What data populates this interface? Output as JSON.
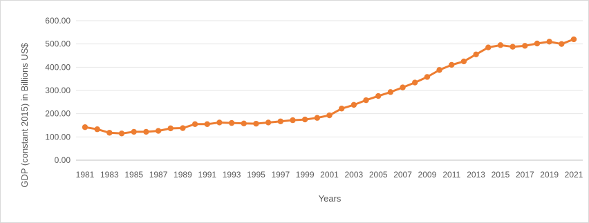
{
  "chart_data": {
    "type": "line",
    "title": "",
    "xlabel": "Years",
    "ylabel": "GDP (constant 2015) in Billions US$",
    "ylim": [
      0,
      600
    ],
    "yticks": [
      "0.00",
      "100.00",
      "200.00",
      "300.00",
      "400.00",
      "500.00",
      "600.00"
    ],
    "xtick_labels": [
      "1981",
      "1983",
      "1985",
      "1987",
      "1989",
      "1991",
      "1993",
      "1995",
      "1997",
      "1999",
      "2001",
      "2003",
      "2005",
      "2007",
      "2009",
      "2011",
      "2013",
      "2015",
      "2017",
      "2019",
      "2021"
    ],
    "grid": true,
    "legend": "none",
    "color": "#ED7D31",
    "x": [
      1981,
      1982,
      1983,
      1984,
      1985,
      1986,
      1987,
      1988,
      1989,
      1990,
      1991,
      1992,
      1993,
      1994,
      1995,
      1996,
      1997,
      1998,
      1999,
      2000,
      2001,
      2002,
      2003,
      2004,
      2005,
      2006,
      2007,
      2008,
      2009,
      2010,
      2011,
      2012,
      2013,
      2014,
      2015,
      2016,
      2017,
      2018,
      2019,
      2020,
      2021
    ],
    "series": [
      {
        "values": [
          142,
          133,
          118,
          115,
          122,
          122,
          126,
          137,
          138,
          155,
          155,
          162,
          160,
          158,
          157,
          162,
          167,
          172,
          175,
          182,
          193,
          222,
          238,
          258,
          276,
          293,
          313,
          334,
          358,
          388,
          410,
          425,
          455,
          485,
          495,
          488,
          492,
          502,
          510,
          500,
          520
        ]
      }
    ]
  }
}
